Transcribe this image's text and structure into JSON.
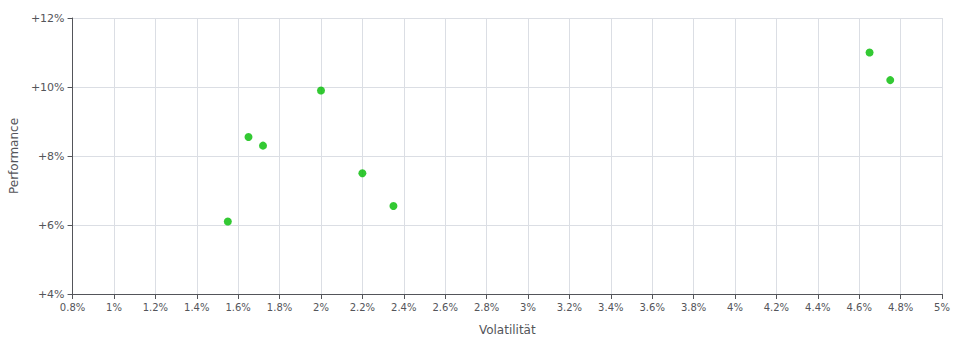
{
  "chart_data": {
    "type": "scatter",
    "x": [
      1.55,
      1.65,
      1.72,
      2.0,
      2.2,
      2.35,
      4.65,
      4.75
    ],
    "values": [
      6.1,
      8.55,
      8.3,
      9.9,
      7.5,
      6.55,
      11.0,
      10.2
    ],
    "color": "#00bb00",
    "xlabel": "Volatilität",
    "ylabel": "Performance",
    "xlim": [
      0.8,
      5.0
    ],
    "ylim": [
      4.0,
      12.0
    ],
    "xticks": [
      {
        "value": 0.8,
        "label": "0.8%"
      },
      {
        "value": 1.0,
        "label": "1%"
      },
      {
        "value": 1.2,
        "label": "1.2%"
      },
      {
        "value": 1.4,
        "label": "1.4%"
      },
      {
        "value": 1.6,
        "label": "1.6%"
      },
      {
        "value": 1.8,
        "label": "1.8%"
      },
      {
        "value": 2.0,
        "label": "2%"
      },
      {
        "value": 2.2,
        "label": "2.2%"
      },
      {
        "value": 2.4,
        "label": "2.4%"
      },
      {
        "value": 2.6,
        "label": "2.6%"
      },
      {
        "value": 2.8,
        "label": "2.8%"
      },
      {
        "value": 3.0,
        "label": "3%"
      },
      {
        "value": 3.2,
        "label": "3.2%"
      },
      {
        "value": 3.4,
        "label": "3.4%"
      },
      {
        "value": 3.6,
        "label": "3.6%"
      },
      {
        "value": 3.8,
        "label": "3.8%"
      },
      {
        "value": 4.0,
        "label": "4%"
      },
      {
        "value": 4.2,
        "label": "4.2%"
      },
      {
        "value": 4.4,
        "label": "4.4%"
      },
      {
        "value": 4.6,
        "label": "4.6%"
      },
      {
        "value": 4.8,
        "label": "4.8%"
      },
      {
        "value": 5.0,
        "label": "5%"
      }
    ],
    "yticks": [
      {
        "value": 4,
        "label": "+4%"
      },
      {
        "value": 6,
        "label": "+6%"
      },
      {
        "value": 8,
        "label": "+8%"
      },
      {
        "value": 10,
        "label": "+10%"
      },
      {
        "value": 12,
        "label": "+12%"
      }
    ],
    "grid": true
  }
}
